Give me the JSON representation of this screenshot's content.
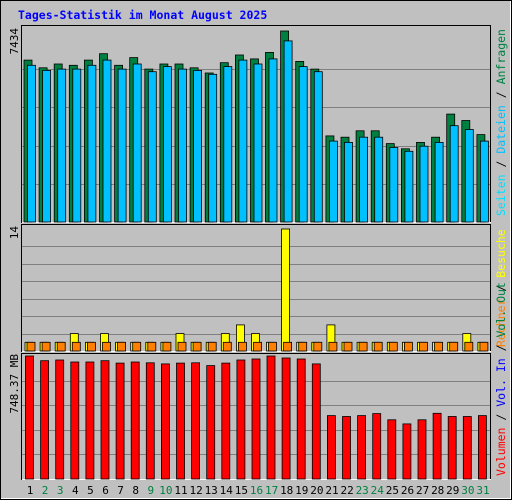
{
  "title": "Tages-Statistik im Monat August 2025",
  "colors": {
    "background": "#c0c0c0",
    "title": "#0000ff",
    "hits": "#008040",
    "files": "#00c0ff",
    "pages": "#00e0ff",
    "visits": "#ffff00",
    "sites": "#ff8000",
    "volume": "#ff0000",
    "volume_in": "#0000ff",
    "volume_out": "#008040",
    "weekend_day": "#008040",
    "weekday": "#000000"
  },
  "side_labels": {
    "panel1": [
      {
        "text": "Seiten",
        "key": "pages"
      },
      {
        "text": " / ",
        "key": "sep"
      },
      {
        "text": "Dateien",
        "key": "files"
      },
      {
        "text": " / ",
        "key": "sep"
      },
      {
        "text": "Anfragen",
        "key": "hits"
      }
    ],
    "panel2": [
      {
        "text": "Rechner",
        "key": "sites"
      },
      {
        "text": " / ",
        "key": "sep"
      },
      {
        "text": "Besuche",
        "key": "visits"
      }
    ],
    "panel3": [
      {
        "text": "Volumen",
        "key": "volume"
      },
      {
        "text": " / ",
        "key": "sep"
      },
      {
        "text": "Vol. In",
        "key": "volume_in"
      },
      {
        "text": " / ",
        "key": "sep"
      },
      {
        "text": "Vol. Out",
        "key": "volume_out"
      }
    ]
  },
  "chart_data": {
    "type": "bar",
    "title": "Tages-Statistik im Monat August 2025",
    "categories": [
      "1",
      "2",
      "3",
      "4",
      "5",
      "6",
      "7",
      "8",
      "9",
      "10",
      "11",
      "12",
      "13",
      "14",
      "15",
      "16",
      "17",
      "18",
      "19",
      "20",
      "21",
      "22",
      "23",
      "24",
      "25",
      "26",
      "27",
      "28",
      "29",
      "30",
      "31"
    ],
    "weekend_days": [
      "2",
      "3",
      "9",
      "10",
      "16",
      "17",
      "23",
      "24",
      "30",
      "31"
    ],
    "panels": [
      {
        "id": "requests",
        "ymax": 7434,
        "ymax_label": "7434",
        "series": [
          {
            "name": "Anfragen",
            "values": [
              6300,
              6000,
              6150,
              6100,
              6300,
              6550,
              6100,
              6400,
              5950,
              6150,
              6150,
              6000,
              5800,
              6200,
              6500,
              6350,
              6600,
              7434,
              6250,
              5950,
              3350,
              3300,
              3550,
              3550,
              3050,
              2850,
              3100,
              3300,
              4200,
              3950,
              3400
            ]
          },
          {
            "name": "Dateien",
            "values": [
              6100,
              5900,
              5950,
              5950,
              6100,
              6300,
              5950,
              6150,
              5850,
              6050,
              5950,
              5900,
              5750,
              6050,
              6300,
              6150,
              6350,
              7050,
              6050,
              5850,
              3150,
              3100,
              3300,
              3300,
              2900,
              2750,
              2950,
              3100,
              3750,
              3600,
              3150
            ]
          },
          {
            "name": "Seiten",
            "values": [
              0,
              0,
              0,
              0,
              0,
              0,
              0,
              0,
              0,
              0,
              0,
              0,
              0,
              0,
              0,
              0,
              0,
              0,
              0,
              0,
              0,
              0,
              0,
              0,
              0,
              0,
              0,
              0,
              0,
              0,
              0
            ]
          }
        ]
      },
      {
        "id": "visits",
        "ymax": 14,
        "ymax_label": "14",
        "series": [
          {
            "name": "Besuche",
            "values": [
              1,
              1,
              1,
              2,
              1,
              2,
              1,
              1,
              1,
              1,
              2,
              1,
              1,
              2,
              3,
              2,
              1,
              14,
              1,
              1,
              3,
              1,
              1,
              1,
              1,
              1,
              1,
              1,
              1,
              2,
              1
            ]
          },
          {
            "name": "Rechner",
            "values": [
              1,
              1,
              1,
              1,
              1,
              1,
              1,
              1,
              1,
              1,
              1,
              1,
              1,
              1,
              1,
              1,
              1,
              1,
              1,
              1,
              1,
              1,
              1,
              1,
              1,
              1,
              1,
              1,
              1,
              1,
              1
            ]
          }
        ]
      },
      {
        "id": "volume",
        "ymax": 748.37,
        "ymax_label": "748.37 MB",
        "series": [
          {
            "name": "Volumen",
            "values": [
              748.37,
              720,
              724,
              712,
              712,
              720,
              705,
              712,
              707,
              700,
              705,
              707,
              690,
              705,
              724,
              730,
              748.37,
              736,
              730,
              700,
              386,
              380,
              386,
              398,
              360,
              335,
              360,
              400,
              380,
              380,
              386
            ]
          },
          {
            "name": "Vol. In",
            "values": [
              0,
              0,
              0,
              0,
              0,
              0,
              0,
              0,
              0,
              0,
              0,
              0,
              0,
              0,
              0,
              0,
              0,
              0,
              0,
              0,
              0,
              0,
              0,
              0,
              0,
              0,
              0,
              0,
              0,
              0,
              0
            ]
          },
          {
            "name": "Vol. Out",
            "values": [
              0,
              0,
              0,
              0,
              0,
              0,
              0,
              0,
              0,
              0,
              0,
              0,
              0,
              0,
              0,
              0,
              0,
              0,
              0,
              0,
              0,
              0,
              0,
              0,
              0,
              0,
              0,
              0,
              0,
              0,
              0
            ]
          }
        ]
      }
    ]
  }
}
